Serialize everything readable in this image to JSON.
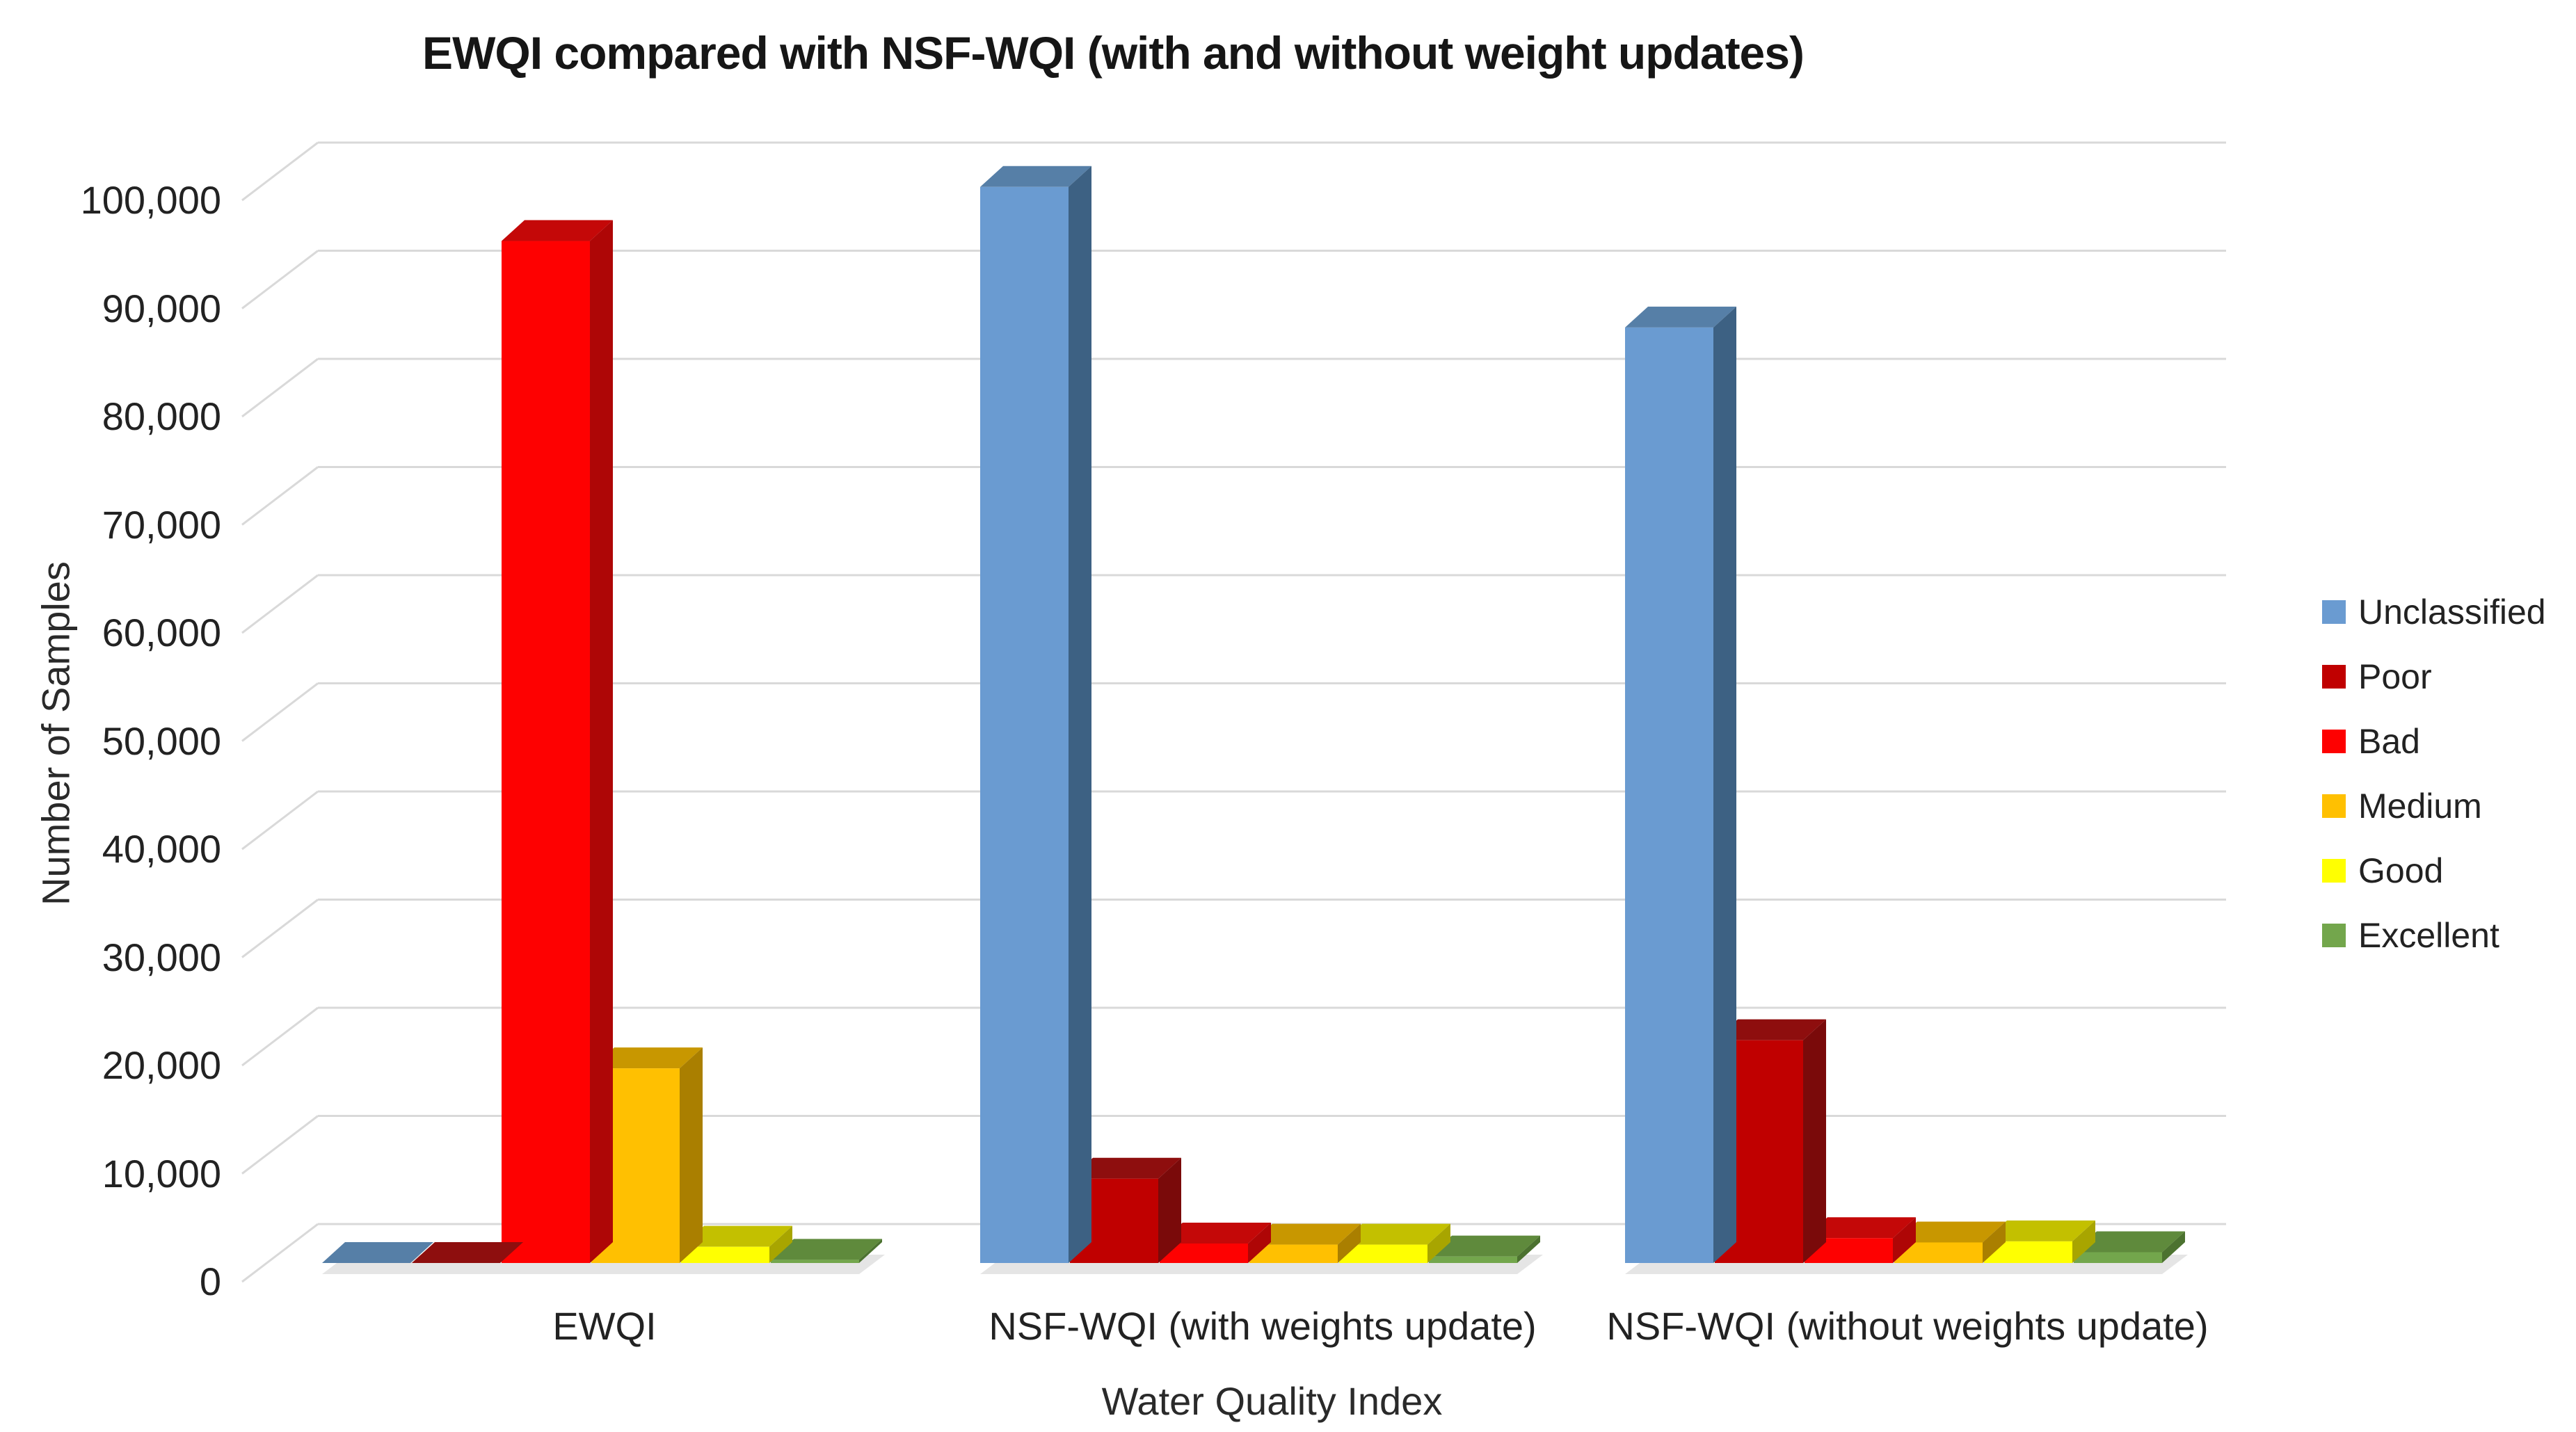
{
  "chart_data": {
    "type": "bar",
    "style": "3d-clustered-column",
    "title": "EWQI compared with NSF-WQI (with and without weight updates)",
    "xlabel": "Water Quality Index",
    "ylabel": "Number of Samples",
    "categories": [
      "EWQI",
      "NSF-WQI (with weights update)",
      "NSF-WQI (without weights update)"
    ],
    "series": [
      {
        "name": "Unclassified",
        "color": "#6A9BD1",
        "color_top": "#567FA7",
        "color_side": "#3D6183",
        "values": [
          0,
          99500,
          86500
        ]
      },
      {
        "name": "Poor",
        "color": "#C00000",
        "color_top": "#8E0E0E",
        "color_side": "#7A0A0A",
        "values": [
          0,
          7800,
          20600
        ]
      },
      {
        "name": "Bad",
        "color": "#FE0101",
        "color_top": "#C40808",
        "color_side": "#AE0606",
        "values": [
          94500,
          1800,
          2300
        ]
      },
      {
        "name": "Medium",
        "color": "#FFC001",
        "color_top": "#C89700",
        "color_side": "#AA7F00",
        "values": [
          18000,
          1700,
          1900
        ]
      },
      {
        "name": "Good",
        "color": "#FFFF01",
        "color_top": "#C3C000",
        "color_side": "#A8A500",
        "values": [
          1500,
          1700,
          2000
        ]
      },
      {
        "name": "Excellent",
        "color": "#73A64C",
        "color_top": "#5F8A3C",
        "color_side": "#4C7230",
        "values": [
          300,
          600,
          1000
        ]
      }
    ],
    "yticks": [
      {
        "label": "0",
        "value": 0
      },
      {
        "label": "10,000",
        "value": 10000
      },
      {
        "label": "20,000",
        "value": 20000
      },
      {
        "label": "30,000",
        "value": 30000
      },
      {
        "label": "40,000",
        "value": 40000
      },
      {
        "label": "50,000",
        "value": 50000
      },
      {
        "label": "60,000",
        "value": 60000
      },
      {
        "label": "70,000",
        "value": 70000
      },
      {
        "label": "80,000",
        "value": 80000
      },
      {
        "label": "90,000",
        "value": 90000
      },
      {
        "label": "100,000",
        "value": 100000
      }
    ],
    "ylim": [
      0,
      100000
    ],
    "grid": true,
    "grid_color": "#D9D9D9",
    "shadow_color": "#DCDCDC",
    "background": "#FFFFFF",
    "text_color": "#1E1E1E",
    "legend_position": "right"
  }
}
